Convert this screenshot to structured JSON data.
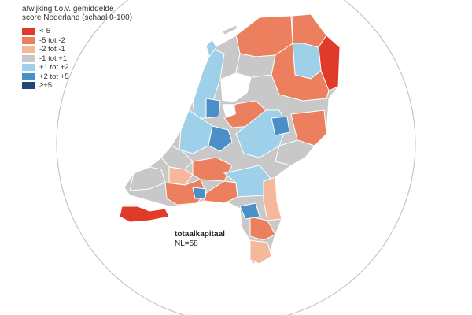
{
  "legend": {
    "title_line1": "afwijking t.o.v. gemiddelde",
    "title_line2": "score Nederland (schaal 0-100)",
    "items": [
      {
        "label": "<-5",
        "color": "#e03a2a"
      },
      {
        "label": "-5 tot -2",
        "color": "#ec7f5d"
      },
      {
        "label": "-2 tot -1",
        "color": "#f5b89a"
      },
      {
        "label": "-1 tot +1",
        "color": "#c8c8c8"
      },
      {
        "label": "+1 tot +2",
        "color": "#9ed0ea"
      },
      {
        "label": "+2 tot +5",
        "color": "#4a8fc7"
      },
      {
        "label": "≥+5",
        "color": "#1f4778"
      }
    ]
  },
  "caption": {
    "title": "totaalkapitaal",
    "value": "NL=58"
  }
}
